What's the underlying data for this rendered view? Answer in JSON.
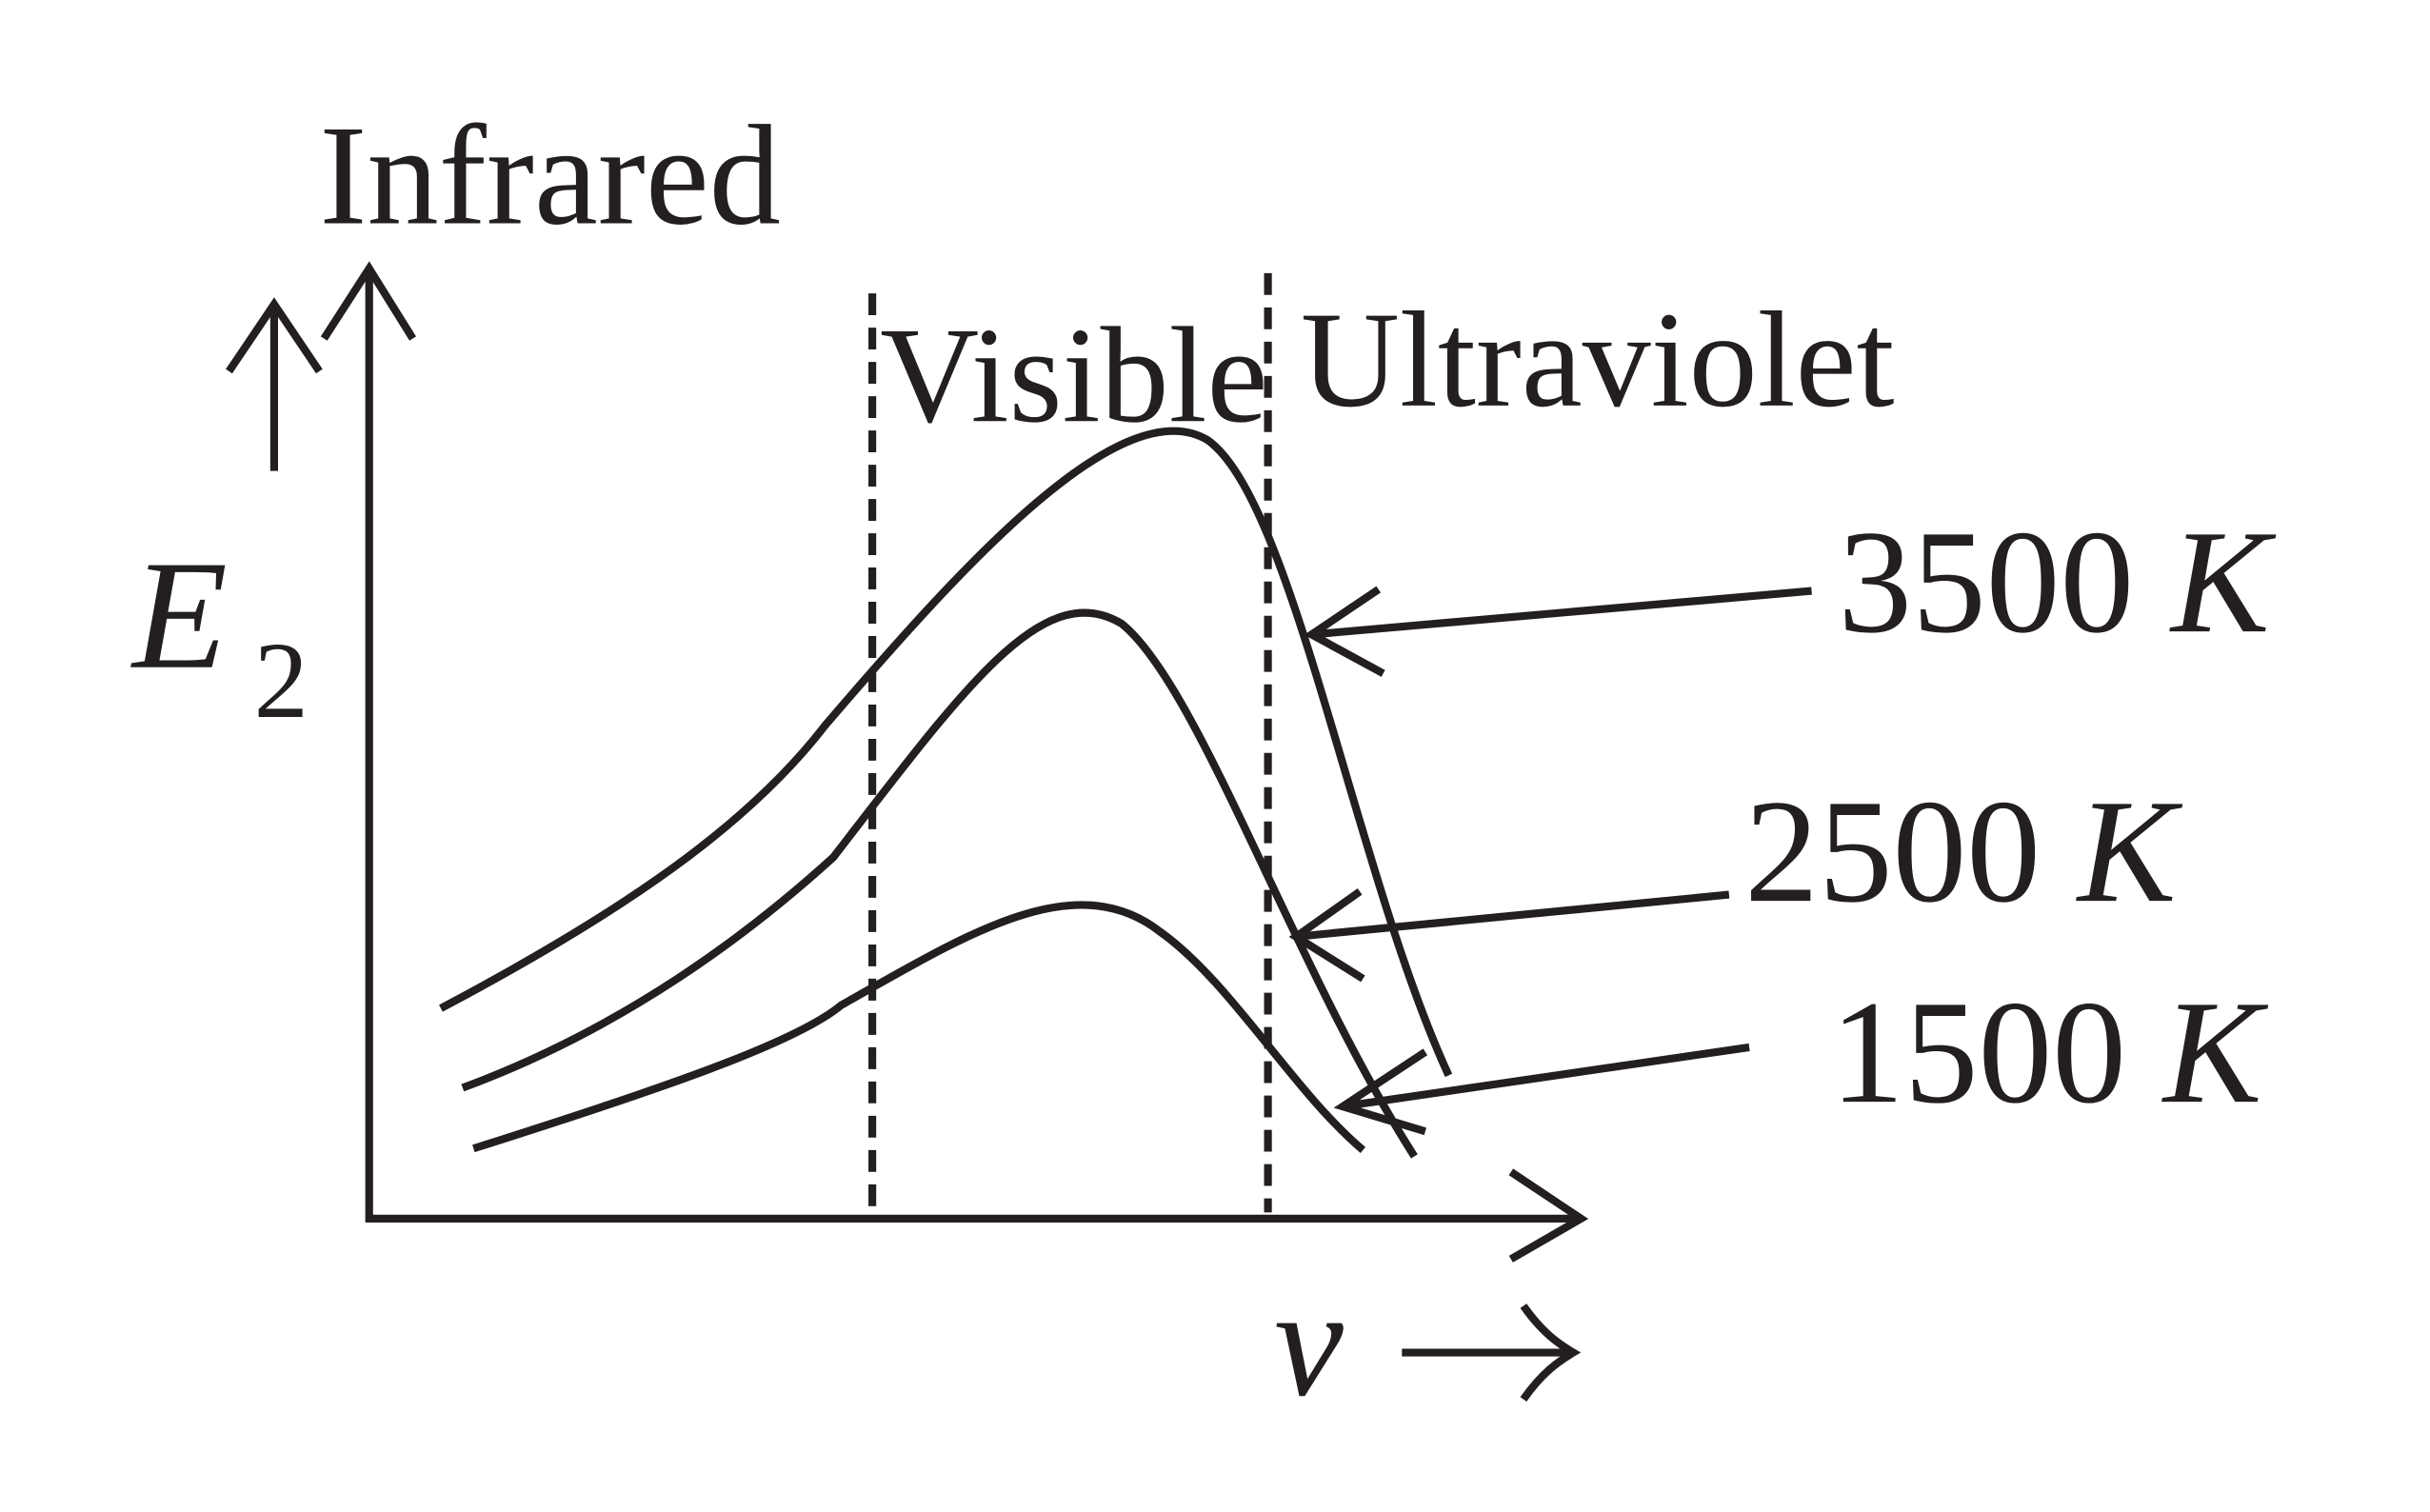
{
  "axes": {
    "y_label": "E",
    "y_label_subscript": "2",
    "x_label": "v"
  },
  "regions": {
    "infrared": "Infrared",
    "visible": "Visible",
    "ultraviolet": "Ultraviolet"
  },
  "curves": [
    {
      "temperature": "3500",
      "unit": "K"
    },
    {
      "temperature": "2500",
      "unit": "K"
    },
    {
      "temperature": "1500",
      "unit": "K"
    }
  ]
}
